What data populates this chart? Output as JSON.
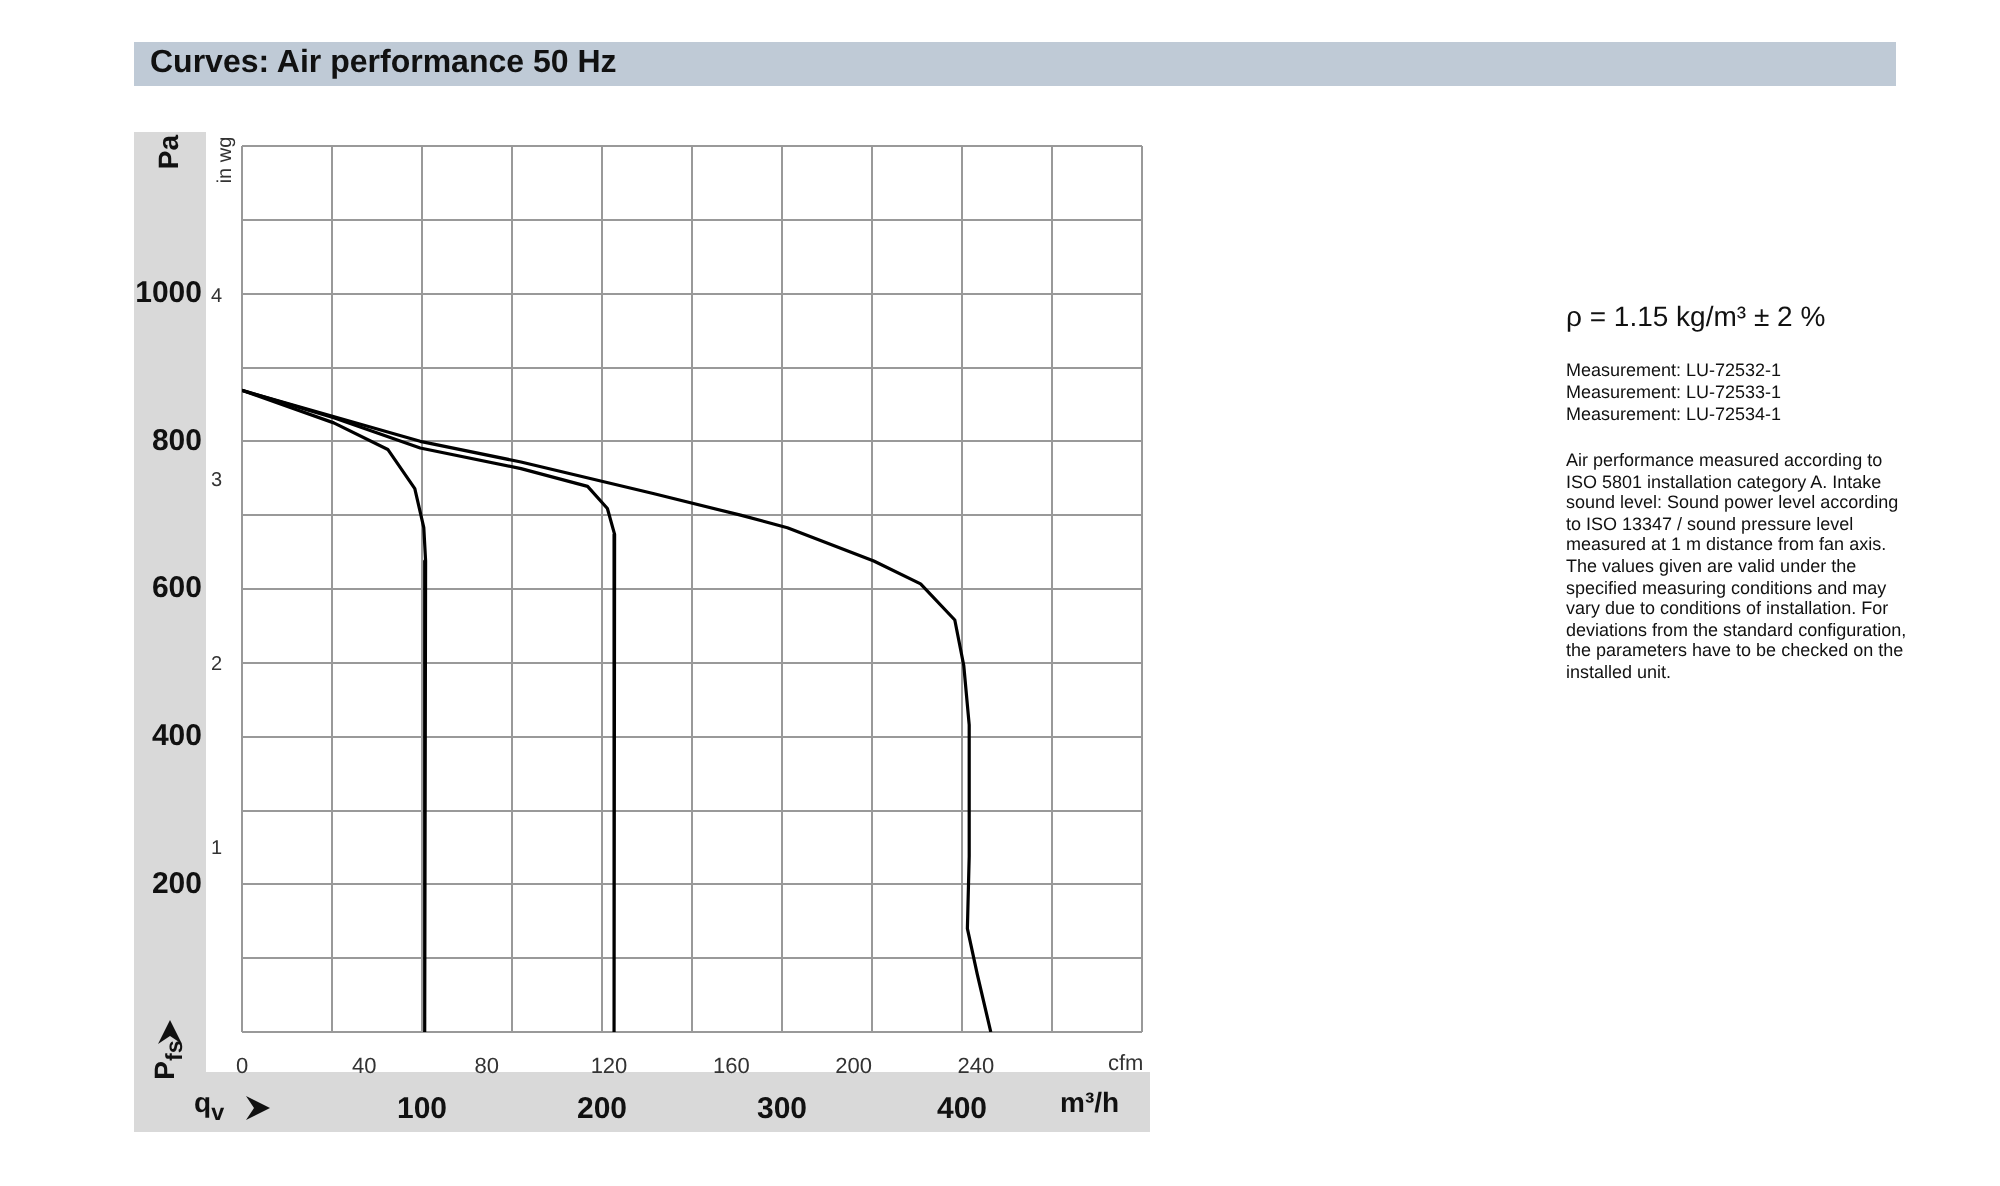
{
  "chart_data": {
    "type": "line",
    "title": "Curves: Air performance 50 Hz",
    "xlabel": "m³/h",
    "ylabel": "Pa",
    "y2label": "in wg",
    "x2label": "cfm",
    "xlim": [
      0,
      500
    ],
    "xticks": [
      {
        "value": 0,
        "label": null
      },
      {
        "value": 50,
        "label": null
      },
      100,
      {
        "value": 150,
        "label": null
      },
      200,
      {
        "value": 250,
        "label": null
      },
      300,
      {
        "value": 350,
        "label": null
      },
      400,
      {
        "value": 450,
        "label": null
      },
      {
        "value": 500,
        "label": null
      }
    ],
    "x2lim": [
      0,
      294.3
    ],
    "x2ticks": [
      0,
      40,
      80,
      120,
      160,
      200,
      240
    ],
    "ylim": [
      0,
      1200
    ],
    "yticks": [
      {
        "value": 0,
        "label": null
      },
      {
        "value": 100,
        "label": null
      },
      200,
      {
        "value": 300,
        "label": null
      },
      400,
      {
        "value": 500,
        "label": null
      },
      600,
      {
        "value": 700,
        "label": null
      },
      800,
      {
        "value": 900,
        "label": null
      },
      1000,
      {
        "value": 1100,
        "label": null
      },
      {
        "value": 1200,
        "label": null
      }
    ],
    "y2lim": [
      0,
      4.82
    ],
    "y2ticks": [
      1,
      2,
      3,
      4
    ],
    "grid": true,
    "legend": false,
    "marker": "none",
    "line_style": "solid",
    "series": [
      {
        "color": "#000000",
        "x": [
          0,
          51,
          81,
          96,
          101,
          102,
          101.5
        ],
        "values": [
          869,
          825,
          789,
          736,
          683,
          638,
          0
        ]
      },
      {
        "color": "#000000",
        "x": [
          0,
          51,
          99,
          155,
          192,
          203,
          207,
          206.7
        ],
        "values": [
          869,
          832,
          791,
          763,
          739,
          709,
          674,
          0
        ]
      },
      {
        "color": "#000000",
        "x": [
          0,
          99,
          155,
          229,
          277,
          303,
          351,
          377,
          396,
          401,
          404,
          404,
          403,
          408.5,
          416
        ],
        "values": [
          869,
          800,
          772,
          729,
          700,
          683,
          638,
          607,
          558,
          496,
          416,
          238,
          140,
          78,
          0
        ]
      }
    ],
    "annotations": [
      "P$_{fs}$",
      "q$_{v}$",
      "ρ = 1.15 kg/m³ ± 2 %",
      "Measurement: LU-72532-1",
      "Measurement: LU-72533-1",
      "Measurement: LU-72534-1",
      "Air performance measured according to ISO 5801 installation category A. Intake sound level: Sound power level according to ISO 13347 / sound pressure level measured at 1 m distance from fan axis. The values given are valid under the specified measuring conditions and may vary due to conditions of installation. For deviations from the standard configuration, the parameters have to be checked on the installed unit."
    ]
  }
}
